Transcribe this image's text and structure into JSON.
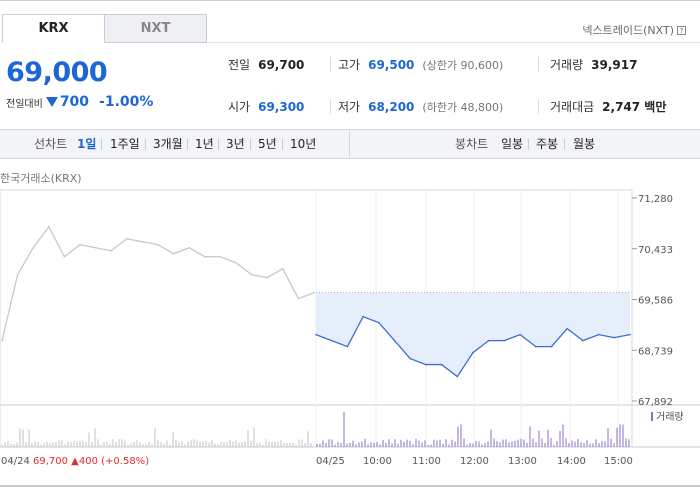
{
  "tabs": [
    {
      "label": "KRX",
      "active": true
    },
    {
      "label": "NXT",
      "active": false
    }
  ],
  "nxt_link": {
    "label": "넥스트레이드(NXT)",
    "help_icon": "question-icon",
    "help_glyph": "?"
  },
  "price": {
    "current": "69,000",
    "change_label": "전일대비",
    "change_value": "700",
    "change_percent": "-1.00%",
    "direction": "down"
  },
  "stats": {
    "prev_close": {
      "label": "전일",
      "value": "69,700"
    },
    "high": {
      "label": "고가",
      "value": "69,500",
      "sub": "(상한가 90,600)"
    },
    "volume": {
      "label": "거래량",
      "value": "39,917"
    },
    "open": {
      "label": "시가",
      "value": "69,300"
    },
    "low": {
      "label": "저가",
      "value": "68,200",
      "sub": "(하한가 48,800)"
    },
    "amount": {
      "label": "거래대금",
      "value": "2,747 백만"
    }
  },
  "period_bar": {
    "line_label": "선차트",
    "line_periods": [
      "1일",
      "1주일",
      "3개월",
      "1년",
      "3년",
      "5년",
      "10년"
    ],
    "selected": "1일",
    "candle_label": "봉차트",
    "candle_periods": [
      "일봉",
      "주봉",
      "월봉"
    ]
  },
  "exchange_label": "한국거래소(KRX)",
  "colors": {
    "accent": "#1c66d6",
    "up": "#e02e2e",
    "line_today": "#3a6fd1",
    "line_prev": "#c8c8c8",
    "fill_today": "#e6eefb",
    "volume_today": "#8c6fc4",
    "volume_prev": "#c0c0c0"
  },
  "chart_data": {
    "type": "line",
    "y_ticks": [
      "71,280",
      "70,433",
      "69,586",
      "68,739",
      "67,892"
    ],
    "ylim": [
      67892,
      71280
    ],
    "prev_close": 69700,
    "x_labels": [
      "04/24",
      "04/25",
      "10:00",
      "11:00",
      "12:00",
      "13:00",
      "14:00",
      "15:00"
    ],
    "volume_legend": "거래량",
    "prev_day_info": {
      "date": "04/24",
      "close": "69,700",
      "change": "400",
      "percent": "(+0.58%)"
    },
    "series": [
      {
        "name": "04/24",
        "x": [
          "09:00",
          "09:20",
          "09:40",
          "10:00",
          "10:20",
          "10:40",
          "11:00",
          "11:20",
          "11:40",
          "12:00",
          "12:20",
          "12:40",
          "13:00",
          "13:20",
          "13:40",
          "14:00",
          "14:20",
          "14:40",
          "15:00",
          "15:20",
          "15:30"
        ],
        "values": [
          68900,
          70000,
          70450,
          70800,
          70300,
          70500,
          70450,
          70400,
          70600,
          70550,
          70500,
          70350,
          70450,
          70300,
          70300,
          70200,
          70000,
          69950,
          70100,
          69600,
          69700
        ]
      },
      {
        "name": "04/25",
        "x": [
          "09:00",
          "09:20",
          "09:40",
          "10:00",
          "10:20",
          "10:40",
          "11:00",
          "11:20",
          "11:40",
          "12:00",
          "12:20",
          "12:40",
          "13:00",
          "13:20",
          "13:40",
          "14:00",
          "14:20",
          "14:40",
          "15:00",
          "15:20",
          "15:30"
        ],
        "values": [
          69000,
          68900,
          68800,
          69300,
          69200,
          68900,
          68600,
          68500,
          68500,
          68300,
          68700,
          68900,
          68900,
          69000,
          68800,
          68800,
          69100,
          68900,
          69000,
          68950,
          69000
        ]
      }
    ]
  }
}
